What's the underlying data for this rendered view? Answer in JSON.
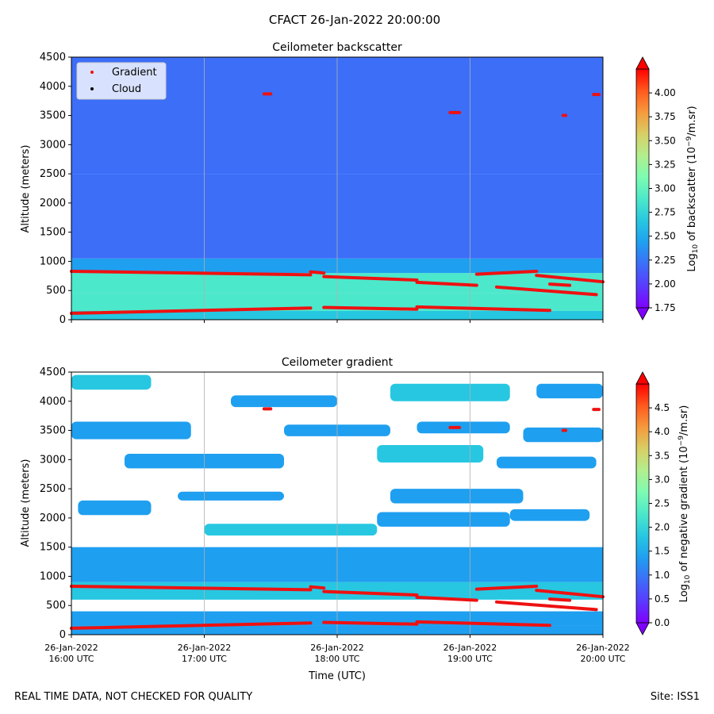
{
  "figure": {
    "title": "CFACT 26-Jan-2022 20:00:00",
    "footer_left": "REAL TIME DATA, NOT CHECKED FOR QUALITY",
    "footer_right": "Site: ISS1"
  },
  "colors": {
    "gradient_marker": "#ee1111",
    "cloud_marker": "#000000",
    "grid": "#b0b0b0",
    "rainbow": [
      "#7f00ff",
      "#5a3bfe",
      "#3c6ef8",
      "#1f9ff0",
      "#27c7e1",
      "#4ce8cb",
      "#7cfcb2",
      "#b2ef8e",
      "#d8cf66",
      "#f59a3c",
      "#ff5a1e",
      "#ff0000"
    ]
  },
  "chart_data": [
    {
      "type": "heatmap",
      "title": "Ceilometer backscatter",
      "xlabel": "",
      "ylabel": "Altitude (meters)",
      "ylim": [
        0,
        4500
      ],
      "yticks": [
        0,
        500,
        1000,
        1500,
        2000,
        2500,
        3000,
        3500,
        4000,
        4500
      ],
      "xticks": [
        0,
        1,
        2,
        3,
        4
      ],
      "xticklabels": [],
      "grid": "vertical",
      "legend": {
        "placement": "top-left",
        "entries": [
          {
            "label": "Gradient",
            "color": "#ee1111"
          },
          {
            "label": "Cloud",
            "color": "#000000"
          }
        ]
      },
      "colorbar": {
        "label": "Log10 of backscatter (10^-9/m.sr)",
        "label_prefix": "Log",
        "label_sub": "10",
        "label_mid": " of backscatter (10",
        "label_sup": "−9",
        "label_suffix": "/m.sr)",
        "range": [
          1.75,
          4.25
        ],
        "ticks": [
          "1.75",
          "2.00",
          "2.25",
          "2.50",
          "2.75",
          "3.00",
          "3.25",
          "3.50",
          "3.75",
          "4.00"
        ],
        "extend": "both"
      },
      "field": {
        "time_hours": [
          0,
          4
        ],
        "layers": [
          {
            "alt_from": 0,
            "alt_to": 150,
            "value": 2.6
          },
          {
            "alt_from": 150,
            "alt_to": 450,
            "value": 2.9
          },
          {
            "alt_from": 450,
            "alt_to": 800,
            "value": 2.85
          },
          {
            "alt_from": 800,
            "alt_to": 1050,
            "value": 2.45
          },
          {
            "alt_from": 1050,
            "alt_to": 2500,
            "value": 2.1
          },
          {
            "alt_from": 2500,
            "alt_to": 4500,
            "value": 2.25
          }
        ]
      },
      "gradient_points": [
        {
          "t": [
            0.0,
            1.8
          ],
          "alt": [
            830,
            770
          ]
        },
        {
          "t": [
            1.8,
            1.9
          ],
          "alt": [
            820,
            800
          ]
        },
        {
          "t": [
            1.9,
            2.6
          ],
          "alt": [
            740,
            680
          ]
        },
        {
          "t": [
            2.6,
            3.05
          ],
          "alt": [
            640,
            590
          ]
        },
        {
          "t": [
            3.05,
            3.5
          ],
          "alt": [
            780,
            830
          ]
        },
        {
          "t": [
            3.5,
            4.0
          ],
          "alt": [
            760,
            650
          ]
        },
        {
          "t": [
            3.2,
            3.95
          ],
          "alt": [
            560,
            430
          ]
        },
        {
          "t": [
            3.6,
            3.75
          ],
          "alt": [
            610,
            590
          ]
        },
        {
          "t": [
            0.0,
            1.8
          ],
          "alt": [
            110,
            200
          ]
        },
        {
          "t": [
            1.9,
            2.6
          ],
          "alt": [
            210,
            180
          ]
        },
        {
          "t": [
            2.6,
            3.6
          ],
          "alt": [
            220,
            160
          ]
        },
        {
          "t": [
            1.45,
            1.5
          ],
          "alt": [
            3870,
            3870
          ]
        },
        {
          "t": [
            2.85,
            2.92
          ],
          "alt": [
            3550,
            3550
          ]
        },
        {
          "t": [
            3.7,
            3.72
          ],
          "alt": [
            3500,
            3500
          ]
        },
        {
          "t": [
            3.93,
            3.97
          ],
          "alt": [
            3860,
            3860
          ]
        }
      ]
    },
    {
      "type": "heatmap",
      "title": "Ceilometer gradient",
      "xlabel": "Time (UTC)",
      "ylabel": "Altitude (meters)",
      "ylim": [
        0,
        4500
      ],
      "yticks": [
        0,
        500,
        1000,
        1500,
        2000,
        2500,
        3000,
        3500,
        4000,
        4500
      ],
      "xticks": [
        0,
        1,
        2,
        3,
        4
      ],
      "xticklabels": [
        [
          "26-Jan-2022",
          "16:00 UTC"
        ],
        [
          "26-Jan-2022",
          "17:00 UTC"
        ],
        [
          "26-Jan-2022",
          "18:00 UTC"
        ],
        [
          "26-Jan-2022",
          "19:00 UTC"
        ],
        [
          "26-Jan-2022",
          "20:00 UTC"
        ]
      ],
      "grid": "vertical",
      "colorbar": {
        "label": "Log10 of negative gradient (10^-9/m.sr)",
        "label_prefix": "Log",
        "label_sub": "10",
        "label_mid": " of negative gradient (10",
        "label_sup": "−9",
        "label_suffix": "/m.sr)",
        "range": [
          0,
          5
        ],
        "ticks": [
          "0.0",
          "0.5",
          "1.0",
          "1.5",
          "2.0",
          "2.5",
          "3.0",
          "3.5",
          "4.0",
          "4.5"
        ],
        "extend": "both"
      },
      "field": {
        "time_hours": [
          0,
          4
        ],
        "layers": [
          {
            "alt_from": 0,
            "alt_to": 150,
            "value": 1.3
          },
          {
            "alt_from": 150,
            "alt_to": 400,
            "value": 1.5
          },
          {
            "alt_from": 600,
            "alt_to": 900,
            "value": 1.9
          },
          {
            "alt_from": 900,
            "alt_to": 1500,
            "value": 1.4
          }
        ],
        "patches": [
          {
            "t": [
              0.05,
              0.6
            ],
            "alt": [
              2050,
              2300
            ],
            "value": 1.2
          },
          {
            "t": [
              0.8,
              1.6
            ],
            "alt": [
              2300,
              2450
            ],
            "value": 1.4
          },
          {
            "t": [
              1.0,
              2.3
            ],
            "alt": [
              1700,
              1900
            ],
            "value": 1.6
          },
          {
            "t": [
              0.4,
              1.6
            ],
            "alt": [
              2850,
              3100
            ],
            "value": 1.5
          },
          {
            "t": [
              2.3,
              3.1
            ],
            "alt": [
              2950,
              3250
            ],
            "value": 1.6
          },
          {
            "t": [
              3.2,
              3.95
            ],
            "alt": [
              2850,
              3050
            ],
            "value": 1.5
          },
          {
            "t": [
              0.0,
              0.9
            ],
            "alt": [
              3350,
              3650
            ],
            "value": 1.4
          },
          {
            "t": [
              1.6,
              2.4
            ],
            "alt": [
              3400,
              3600
            ],
            "value": 1.5
          },
          {
            "t": [
              2.6,
              3.3
            ],
            "alt": [
              3450,
              3650
            ],
            "value": 1.4
          },
          {
            "t": [
              3.4,
              4.0
            ],
            "alt": [
              3300,
              3550
            ],
            "value": 1.5
          },
          {
            "t": [
              0.0,
              0.6
            ],
            "alt": [
              4200,
              4450
            ],
            "value": 1.6
          },
          {
            "t": [
              1.2,
              2.0
            ],
            "alt": [
              3900,
              4100
            ],
            "value": 1.4
          },
          {
            "t": [
              2.4,
              3.3
            ],
            "alt": [
              4000,
              4300
            ],
            "value": 1.6
          },
          {
            "t": [
              3.5,
              4.0
            ],
            "alt": [
              4050,
              4300
            ],
            "value": 1.5
          },
          {
            "t": [
              2.3,
              3.3
            ],
            "alt": [
              1850,
              2100
            ],
            "value": 1.3
          },
          {
            "t": [
              2.4,
              3.4
            ],
            "alt": [
              2250,
              2500
            ],
            "value": 1.5
          },
          {
            "t": [
              3.3,
              3.9
            ],
            "alt": [
              1950,
              2150
            ],
            "value": 1.4
          }
        ]
      },
      "gradient_points": [
        {
          "t": [
            0.0,
            1.8
          ],
          "alt": [
            830,
            770
          ]
        },
        {
          "t": [
            1.8,
            1.9
          ],
          "alt": [
            820,
            800
          ]
        },
        {
          "t": [
            1.9,
            2.6
          ],
          "alt": [
            740,
            680
          ]
        },
        {
          "t": [
            2.6,
            3.05
          ],
          "alt": [
            640,
            590
          ]
        },
        {
          "t": [
            3.05,
            3.5
          ],
          "alt": [
            780,
            830
          ]
        },
        {
          "t": [
            3.5,
            4.0
          ],
          "alt": [
            760,
            650
          ]
        },
        {
          "t": [
            3.2,
            3.95
          ],
          "alt": [
            560,
            430
          ]
        },
        {
          "t": [
            3.6,
            3.75
          ],
          "alt": [
            610,
            590
          ]
        },
        {
          "t": [
            0.0,
            1.8
          ],
          "alt": [
            110,
            200
          ]
        },
        {
          "t": [
            1.9,
            2.6
          ],
          "alt": [
            210,
            180
          ]
        },
        {
          "t": [
            2.6,
            3.6
          ],
          "alt": [
            220,
            160
          ]
        },
        {
          "t": [
            1.45,
            1.5
          ],
          "alt": [
            3870,
            3870
          ]
        },
        {
          "t": [
            2.85,
            2.92
          ],
          "alt": [
            3550,
            3550
          ]
        },
        {
          "t": [
            3.7,
            3.72
          ],
          "alt": [
            3500,
            3500
          ]
        },
        {
          "t": [
            3.93,
            3.97
          ],
          "alt": [
            3860,
            3860
          ]
        }
      ]
    }
  ]
}
